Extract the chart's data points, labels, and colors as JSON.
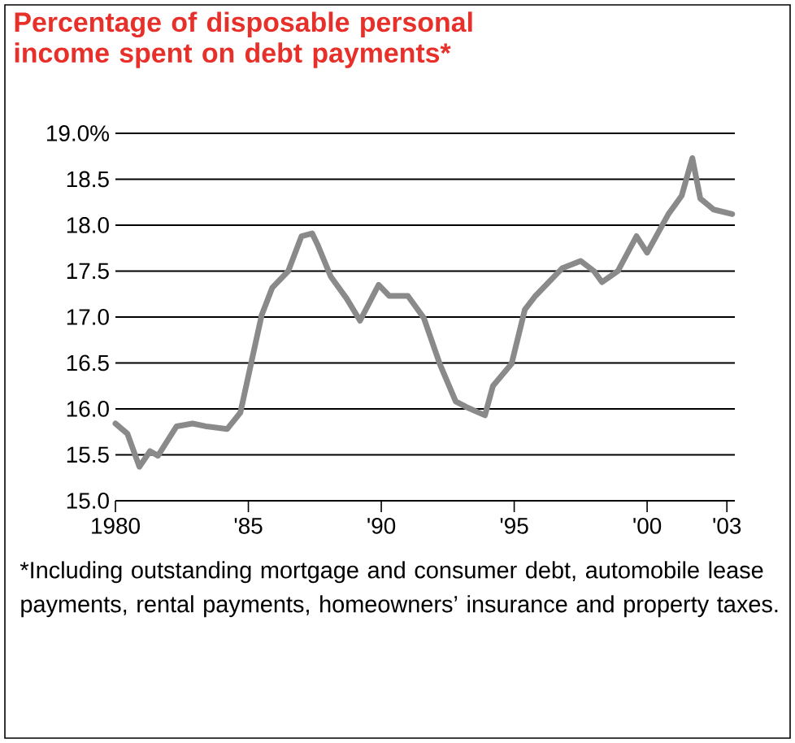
{
  "chart_data": {
    "type": "line",
    "title": "Percentage of disposable personal income spent on debt payments*",
    "annotations": [
      "*Including outstanding mortgage and consumer debt, automobile lease payments, rental payments, homeowners’ insurance and property taxes."
    ],
    "x": [
      1980.0,
      1980.45,
      1980.9,
      1981.3,
      1981.6,
      1982.3,
      1982.9,
      1983.4,
      1984.2,
      1984.7,
      1985.1,
      1985.5,
      1985.9,
      1986.5,
      1987.0,
      1987.4,
      1987.6,
      1988.1,
      1988.7,
      1989.2,
      1989.9,
      1990.3,
      1991.0,
      1991.6,
      1992.2,
      1992.8,
      1993.2,
      1993.9,
      1994.2,
      1994.9,
      1995.4,
      1995.8,
      1996.8,
      1997.5,
      1998.0,
      1998.3,
      1998.9,
      1999.6,
      2000.0,
      2000.8,
      2001.3,
      2001.7,
      2002.0,
      2002.5,
      2003.2
    ],
    "series": [
      {
        "color": "#8a8a8a",
        "values": [
          15.84,
          15.73,
          15.37,
          15.54,
          15.49,
          15.81,
          15.84,
          15.81,
          15.78,
          15.96,
          16.49,
          17.02,
          17.32,
          17.5,
          17.88,
          17.91,
          17.79,
          17.44,
          17.2,
          16.96,
          17.35,
          17.23,
          17.23,
          16.99,
          16.49,
          16.08,
          16.02,
          15.93,
          16.25,
          16.49,
          17.08,
          17.23,
          17.53,
          17.61,
          17.5,
          17.38,
          17.5,
          17.88,
          17.7,
          18.12,
          18.32,
          18.73,
          18.29,
          18.17,
          18.12
        ]
      }
    ],
    "xlim": [
      1980,
      2003.3
    ],
    "xticks": [
      1980,
      {
        "value": 1985,
        "label": "'85"
      },
      {
        "value": 1990,
        "label": "'90"
      },
      {
        "value": 1995,
        "label": "'95"
      },
      {
        "value": 2000,
        "label": "'00"
      },
      {
        "value": 2003,
        "label": "'03"
      }
    ],
    "ylim": [
      15,
      19
    ],
    "yticks": [
      {
        "value": 15,
        "label": "15.0"
      },
      15.5,
      {
        "value": 16,
        "label": "16.0"
      },
      16.5,
      {
        "value": 17,
        "label": "17.0"
      },
      17.5,
      {
        "value": 18,
        "label": "18.0"
      },
      18.5,
      {
        "value": 19,
        "label": "19.0%"
      }
    ],
    "grid": "y",
    "marker": "none",
    "line_style": "solid"
  }
}
